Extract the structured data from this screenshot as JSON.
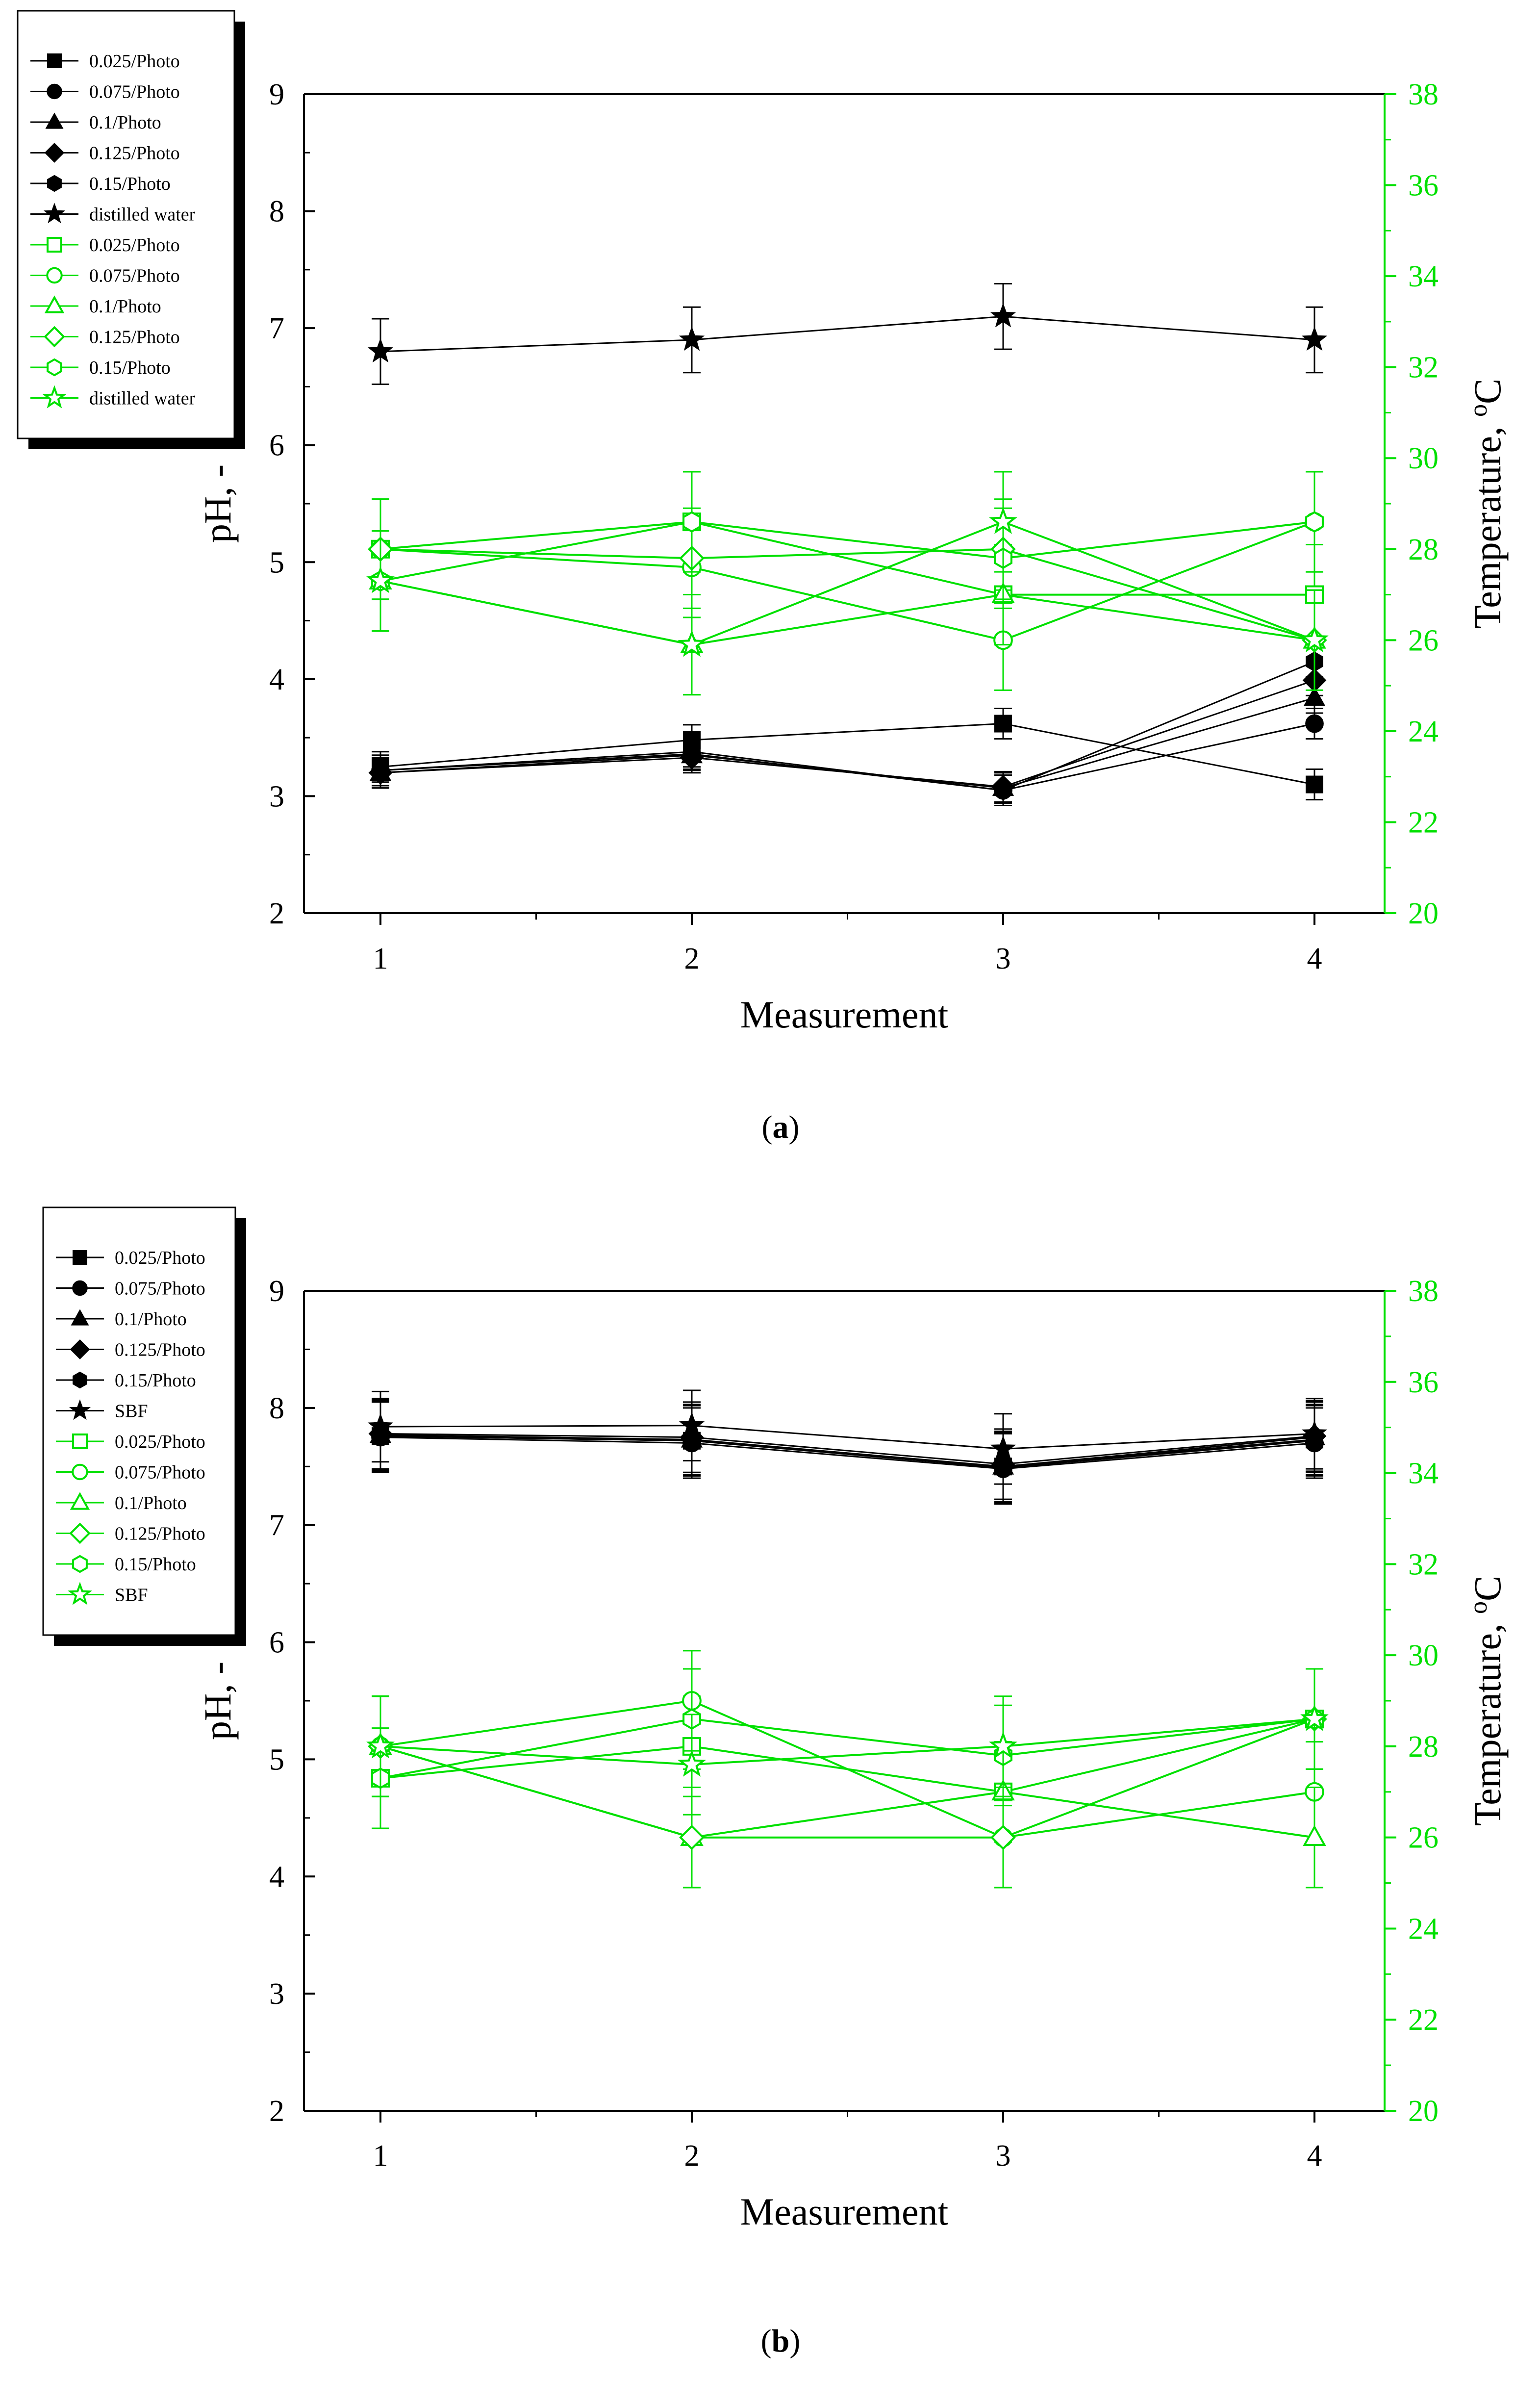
{
  "colors": {
    "ph": "#000000",
    "temperature": "#00e000"
  },
  "chart_data": [
    {
      "type": "line",
      "panel": "a",
      "caption": {
        "open": "(",
        "letter": "a",
        "close": ")"
      },
      "xlabel": "Measurement",
      "ylabel": "pH, -",
      "y2label": {
        "text": "Temperature, ",
        "sup": "o",
        "unit": "C"
      },
      "x": [
        1,
        2,
        3,
        4
      ],
      "xticks": [
        "1",
        "2",
        "3",
        "4"
      ],
      "ylim": [
        2,
        9
      ],
      "yticks": [
        "2",
        "3",
        "4",
        "5",
        "6",
        "7",
        "8",
        "9"
      ],
      "y2lim": [
        20,
        38
      ],
      "y2ticks": [
        "20",
        "22",
        "24",
        "26",
        "28",
        "30",
        "32",
        "34",
        "36",
        "38"
      ],
      "series": [
        {
          "name": "0.025/Photo",
          "axis": "pH",
          "marker": "square",
          "filled": true,
          "values": [
            3.25,
            3.48,
            3.62,
            3.1
          ],
          "err": 0.13
        },
        {
          "name": "0.075/Photo",
          "axis": "pH",
          "marker": "circle",
          "filled": true,
          "values": [
            3.22,
            3.36,
            3.05,
            3.62
          ],
          "err": 0.13
        },
        {
          "name": "0.1/Photo",
          "axis": "pH",
          "marker": "triangle",
          "filled": true,
          "values": [
            3.2,
            3.35,
            3.07,
            3.84
          ],
          "err": 0.13
        },
        {
          "name": "0.125/Photo",
          "axis": "pH",
          "marker": "diamond",
          "filled": true,
          "values": [
            3.2,
            3.33,
            3.08,
            3.99
          ],
          "err": 0.13
        },
        {
          "name": "0.15/Photo",
          "axis": "pH",
          "marker": "hexagon",
          "filled": true,
          "values": [
            3.22,
            3.38,
            3.05,
            4.15
          ],
          "err": 0.13
        },
        {
          "name": "distilled water",
          "axis": "pH",
          "marker": "star",
          "filled": true,
          "values": [
            6.8,
            6.9,
            7.1,
            6.9
          ],
          "err": 0.28
        },
        {
          "name": "0.025/Photo",
          "axis": "T",
          "marker": "square",
          "filled": false,
          "values": [
            28,
            28.6,
            27,
            27
          ],
          "err": 1.1
        },
        {
          "name": "0.075/Photo",
          "axis": "T",
          "marker": "circle",
          "filled": false,
          "values": [
            28,
            27.6,
            26,
            28.6
          ],
          "err": 1.1
        },
        {
          "name": "0.1/Photo",
          "axis": "T",
          "marker": "triangle",
          "filled": false,
          "values": [
            27.3,
            25.9,
            27,
            26
          ],
          "err": 1.1
        },
        {
          "name": "0.125/Photo",
          "axis": "T",
          "marker": "diamond",
          "filled": false,
          "values": [
            28,
            27.8,
            28,
            26
          ],
          "err": 1.1
        },
        {
          "name": "0.15/Photo",
          "axis": "T",
          "marker": "hexagon",
          "filled": false,
          "values": [
            27.3,
            28.6,
            27.8,
            28.6
          ],
          "err": 1.1
        },
        {
          "name": "distilled water",
          "axis": "T",
          "marker": "star",
          "filled": false,
          "values": [
            27.3,
            25.9,
            28.6,
            26
          ],
          "err": 1.1
        }
      ]
    },
    {
      "type": "line",
      "panel": "b",
      "caption": {
        "open": "(",
        "letter": "b",
        "close": ")"
      },
      "xlabel": "Measurement",
      "ylabel": "pH, -",
      "y2label": {
        "text": "Temperature, ",
        "sup": "o",
        "unit": "C"
      },
      "x": [
        1,
        2,
        3,
        4
      ],
      "xticks": [
        "1",
        "2",
        "3",
        "4"
      ],
      "ylim": [
        2,
        9
      ],
      "yticks": [
        "2",
        "3",
        "4",
        "5",
        "6",
        "7",
        "8",
        "9"
      ],
      "y2lim": [
        20,
        38
      ],
      "y2ticks": [
        "20",
        "22",
        "24",
        "26",
        "28",
        "30",
        "32",
        "34",
        "36",
        "38"
      ],
      "series": [
        {
          "name": "0.025/Photo",
          "axis": "pH",
          "marker": "square",
          "filled": true,
          "values": [
            7.76,
            7.72,
            7.5,
            7.73
          ],
          "err": 0.3
        },
        {
          "name": "0.075/Photo",
          "axis": "pH",
          "marker": "circle",
          "filled": true,
          "values": [
            7.75,
            7.7,
            7.48,
            7.7
          ],
          "err": 0.3
        },
        {
          "name": "0.1/Photo",
          "axis": "pH",
          "marker": "triangle",
          "filled": true,
          "values": [
            7.77,
            7.73,
            7.5,
            7.75
          ],
          "err": 0.3
        },
        {
          "name": "0.125/Photo",
          "axis": "pH",
          "marker": "diamond",
          "filled": true,
          "values": [
            7.78,
            7.75,
            7.52,
            7.76
          ],
          "err": 0.3
        },
        {
          "name": "0.15/Photo",
          "axis": "pH",
          "marker": "hexagon",
          "filled": true,
          "values": [
            7.76,
            7.72,
            7.49,
            7.72
          ],
          "err": 0.3
        },
        {
          "name": "SBF",
          "axis": "pH",
          "marker": "star",
          "filled": true,
          "values": [
            7.84,
            7.85,
            7.65,
            7.78
          ],
          "err": 0.3
        },
        {
          "name": "0.025/Photo",
          "axis": "T",
          "marker": "square",
          "filled": false,
          "values": [
            27.3,
            28,
            27,
            28.6
          ],
          "err": 1.1
        },
        {
          "name": "0.075/Photo",
          "axis": "T",
          "marker": "circle",
          "filled": false,
          "values": [
            28,
            29,
            26,
            27
          ],
          "err": 1.1
        },
        {
          "name": "0.1/Photo",
          "axis": "T",
          "marker": "triangle",
          "filled": false,
          "values": [
            28,
            26,
            27,
            26
          ],
          "err": 1.1
        },
        {
          "name": "0.125/Photo",
          "axis": "T",
          "marker": "diamond",
          "filled": false,
          "values": [
            28,
            26,
            26,
            28.6
          ],
          "err": 1.1
        },
        {
          "name": "0.15/Photo",
          "axis": "T",
          "marker": "hexagon",
          "filled": false,
          "values": [
            27.3,
            28.6,
            27.8,
            28.6
          ],
          "err": 1.1
        },
        {
          "name": "SBF",
          "axis": "T",
          "marker": "star",
          "filled": false,
          "values": [
            28,
            27.6,
            28,
            28.6
          ],
          "err": 1.1
        }
      ]
    }
  ]
}
